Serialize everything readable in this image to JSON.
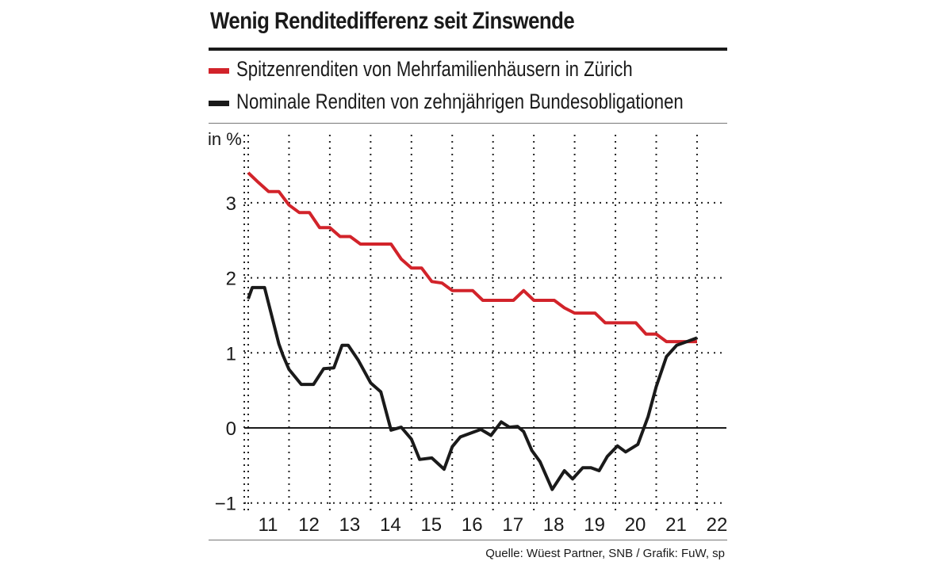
{
  "title": "Wenig Renditedifferenz seit Zinswende",
  "source": "Quelle: Wüest Partner, SNB / Grafik: FuW, sp",
  "colors": {
    "red": "#d2232a",
    "black": "#1a1a1a",
    "grid": "#222222"
  },
  "legend": [
    {
      "label": "Spitzenrenditen von Mehrfamilienhäusern in Zürich",
      "color": "#d2232a"
    },
    {
      "label": "Nominale Renditen von zehnjährigen Bundesobligationen",
      "color": "#1a1a1a"
    }
  ],
  "chart_data": {
    "type": "line",
    "ylabel": "in %",
    "xlabel": "",
    "ylim": [
      -1,
      3.8
    ],
    "xlim": [
      2011,
      2022.5
    ],
    "yticks": [
      -1,
      0,
      1,
      2,
      3
    ],
    "ytick_labels": [
      "−1",
      "0",
      "1",
      "2",
      "3"
    ],
    "xticks": [
      2011,
      2012,
      2013,
      2014,
      2015,
      2016,
      2017,
      2018,
      2019,
      2020,
      2021,
      2022
    ],
    "xtick_labels": [
      "11",
      "12",
      "13",
      "14",
      "15",
      "16",
      "17",
      "18",
      "19",
      "20",
      "21",
      "22"
    ],
    "grid": true,
    "series": [
      {
        "name": "Spitzenrenditen von Mehrfamilienhäusern in Zürich",
        "color": "#d2232a",
        "x": [
          2011.0,
          2011.25,
          2011.5,
          2011.75,
          2012.0,
          2012.25,
          2012.5,
          2012.75,
          2013.0,
          2013.25,
          2013.5,
          2013.75,
          2014.0,
          2014.25,
          2014.5,
          2014.75,
          2015.0,
          2015.25,
          2015.5,
          2015.75,
          2016.0,
          2016.25,
          2016.5,
          2016.75,
          2017.0,
          2017.25,
          2017.5,
          2017.75,
          2018.0,
          2018.25,
          2018.5,
          2018.75,
          2019.0,
          2019.25,
          2019.5,
          2019.75,
          2020.0,
          2020.25,
          2020.5,
          2020.75,
          2021.0,
          2021.25,
          2021.5,
          2021.75,
          2022.0
        ],
        "values": [
          3.4,
          3.27,
          3.15,
          3.15,
          2.97,
          2.87,
          2.87,
          2.67,
          2.67,
          2.55,
          2.55,
          2.45,
          2.45,
          2.45,
          2.45,
          2.25,
          2.13,
          2.13,
          1.95,
          1.93,
          1.83,
          1.83,
          1.83,
          1.7,
          1.7,
          1.7,
          1.7,
          1.83,
          1.7,
          1.7,
          1.7,
          1.6,
          1.53,
          1.53,
          1.53,
          1.4,
          1.4,
          1.4,
          1.4,
          1.25,
          1.25,
          1.15,
          1.15,
          1.15,
          1.15
        ]
      },
      {
        "name": "Nominale Renditen von zehnjährigen Bundesobligationen",
        "color": "#1a1a1a",
        "x": [
          2011.0,
          2011.1,
          2011.4,
          2011.75,
          2011.85,
          2012.0,
          2012.3,
          2012.6,
          2012.85,
          2013.1,
          2013.3,
          2013.45,
          2013.7,
          2014.0,
          2014.25,
          2014.5,
          2014.75,
          2015.0,
          2015.2,
          2015.5,
          2015.8,
          2016.0,
          2016.2,
          2016.45,
          2016.7,
          2016.95,
          2017.2,
          2017.4,
          2017.6,
          2017.75,
          2017.95,
          2018.15,
          2018.45,
          2018.75,
          2018.95,
          2019.2,
          2019.4,
          2019.6,
          2019.8,
          2020.05,
          2020.25,
          2020.55,
          2020.8,
          2021.0,
          2021.25,
          2021.5,
          2021.75,
          2022.0
        ],
        "values": [
          1.72,
          1.87,
          1.87,
          1.12,
          0.97,
          0.78,
          0.58,
          0.58,
          0.79,
          0.8,
          1.1,
          1.1,
          0.9,
          0.6,
          0.48,
          -0.03,
          0.01,
          -0.15,
          -0.42,
          -0.4,
          -0.55,
          -0.25,
          -0.12,
          -0.07,
          -0.02,
          -0.1,
          0.08,
          0.01,
          0.02,
          -0.05,
          -0.3,
          -0.45,
          -0.82,
          -0.57,
          -0.68,
          -0.53,
          -0.53,
          -0.57,
          -0.38,
          -0.24,
          -0.32,
          -0.22,
          0.15,
          0.55,
          0.95,
          1.1,
          1.15,
          1.2
        ]
      }
    ]
  }
}
